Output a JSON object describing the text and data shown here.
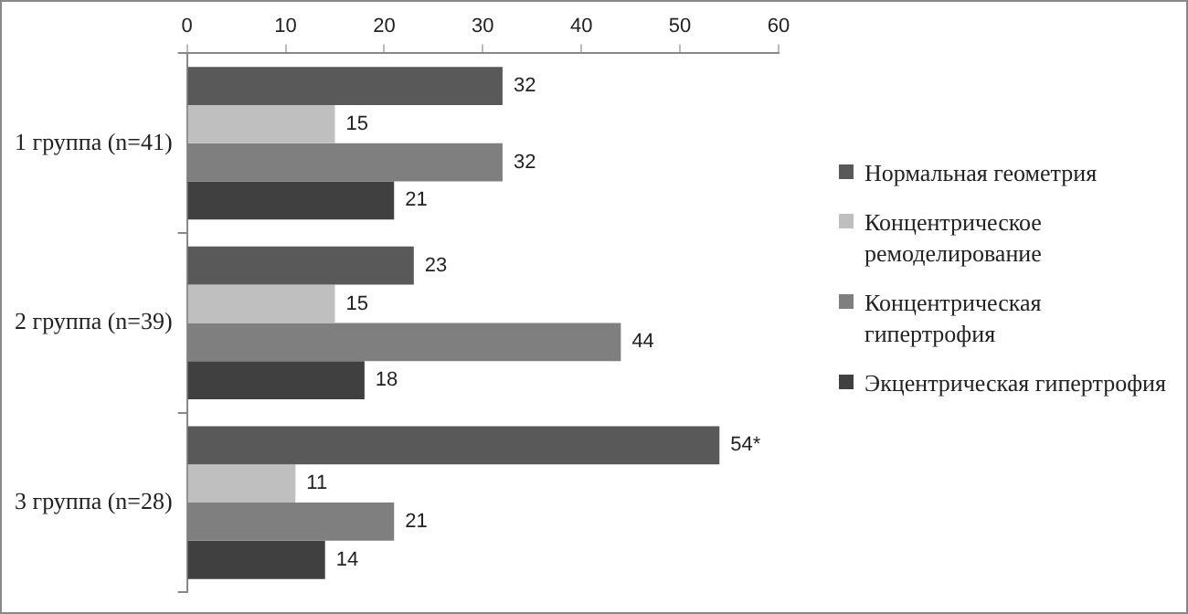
{
  "chart_data": {
    "type": "bar",
    "orientation": "horizontal",
    "categories": [
      "1 группа (n=41)",
      "2 группа (n=39)",
      "3 группа (n=28)"
    ],
    "series": [
      {
        "name": "Нормальная геометрия",
        "color": "#595959",
        "values": [
          32,
          23,
          54
        ],
        "value_labels": [
          "32",
          "23",
          "54*"
        ]
      },
      {
        "name": "Концентрическое ремоделирование",
        "color": "#bfbfbf",
        "values": [
          15,
          15,
          11
        ],
        "value_labels": [
          "15",
          "15",
          "11"
        ]
      },
      {
        "name": "Концентрическая гипертрофия",
        "color": "#7f7f7f",
        "values": [
          32,
          44,
          21
        ],
        "value_labels": [
          "32",
          "44",
          "21"
        ]
      },
      {
        "name": "Экцентрическая гипертрофия",
        "color": "#404040",
        "values": [
          21,
          18,
          14
        ],
        "value_labels": [
          "21",
          "18",
          "14"
        ]
      }
    ],
    "xlim": [
      0,
      60
    ],
    "xticks": [
      0,
      10,
      20,
      30,
      40,
      50,
      60
    ],
    "grid": false,
    "legend": "right"
  }
}
